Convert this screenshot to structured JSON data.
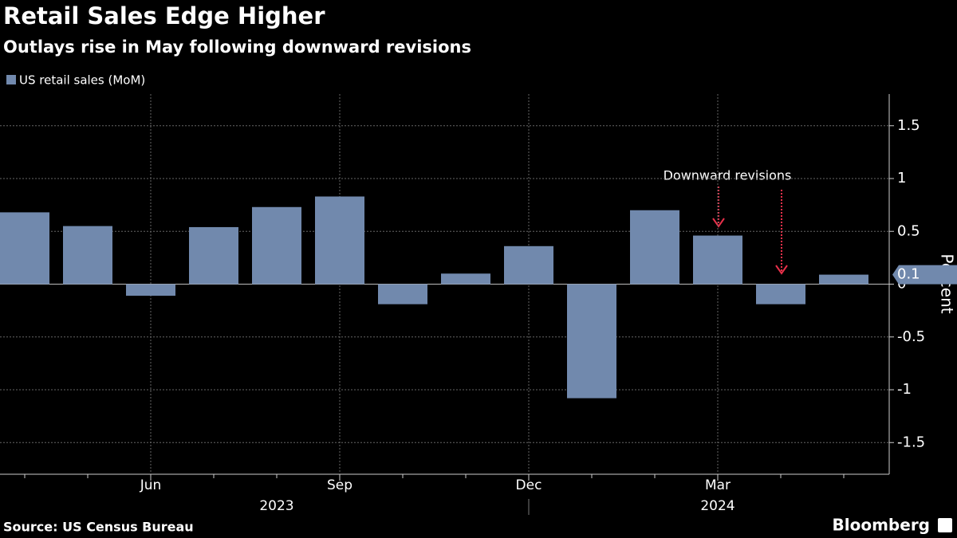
{
  "chart_data": {
    "type": "bar",
    "title": "Retail Sales Edge Higher",
    "subtitle": "Outlays rise in May following downward revisions",
    "categories": [
      null,
      null,
      "Jun",
      null,
      null,
      "Sep",
      null,
      null,
      "Dec",
      null,
      null,
      "Mar",
      null,
      null
    ],
    "years": [
      "2023",
      "2024"
    ],
    "series": [
      {
        "name": "US retail sales (MoM)",
        "color": "#7189ad",
        "values": [
          0.68,
          0.55,
          -0.11,
          0.54,
          0.73,
          0.83,
          -0.19,
          0.1,
          0.36,
          -1.08,
          0.7,
          0.46,
          -0.19,
          0.09
        ],
        "value_labels": [
          null,
          null,
          null,
          null,
          null,
          null,
          null,
          null,
          null,
          null,
          null,
          null,
          null,
          "0.1"
        ]
      }
    ],
    "ylim": [
      -1.8,
      1.8
    ],
    "yticks": [
      -1.5,
      -1.0,
      -0.5,
      0.0,
      0.5,
      1.0,
      1.5
    ],
    "ylabel": "Percent",
    "grid": true,
    "annotation": "Downward revisions",
    "source": "Source: US Census Bureau",
    "brand": "Bloomberg"
  }
}
